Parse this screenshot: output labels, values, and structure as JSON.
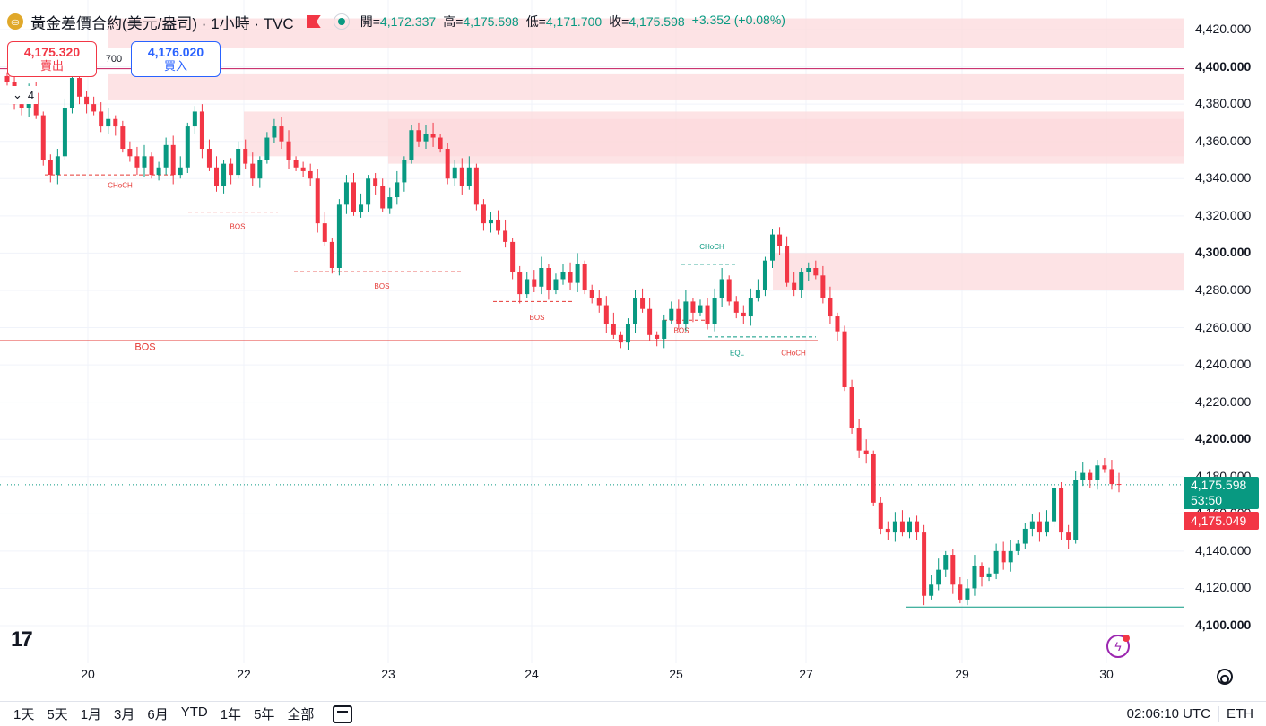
{
  "header": {
    "title": "黃金差價合約(美元/盎司) · 1小時 · TVC",
    "symbol_glyph": "⛀",
    "ohlc": [
      {
        "k": "開=",
        "v": "4,172.337"
      },
      {
        "k": "高=",
        "v": "4,175.598"
      },
      {
        "k": "低=",
        "v": "4,171.700"
      },
      {
        "k": "收=",
        "v": "4,175.598"
      },
      {
        "k": "",
        "v": "+3.352 (+0.08%)"
      }
    ]
  },
  "trade": {
    "sell_price": "4,175.320",
    "sell_label": "賣出",
    "spread": "700",
    "buy_price": "4,176.020",
    "buy_label": "買入"
  },
  "indicators_count": "4",
  "price_labels": {
    "last_price": "4,175.598",
    "countdown": "53:50",
    "bid_price": "4,175.049"
  },
  "bottom": {
    "periods": [
      "1天",
      "5天",
      "1月",
      "3月",
      "6月",
      "YTD",
      "1年",
      "5年",
      "全部"
    ],
    "time": "02:06:10 UTC",
    "session": "ETH"
  },
  "colors": {
    "up": "#089981",
    "down": "#f23645",
    "zone": "#fcd9dc"
  },
  "chart_data": {
    "type": "candlestick",
    "title": "黃金差價合約(美元/盎司) · 1小時 · TVC",
    "ylim": [
      4090,
      4430
    ],
    "y_ticks": [
      4100,
      4120,
      4140,
      4160,
      4180,
      4200,
      4220,
      4240,
      4260,
      4280,
      4300,
      4320,
      4340,
      4360,
      4380,
      4400,
      4420
    ],
    "y_tick_labels": [
      "4,100.000",
      "4,120.000",
      "4,140.000",
      "4,160.000",
      "4,180.000",
      "4,200.000",
      "4,220.000",
      "4,240.000",
      "4,260.000",
      "4,280.000",
      "4,300.000",
      "4,320.000",
      "4,340.000",
      "4,360.000",
      "4,380.000",
      "4,400.000",
      "4,420.000"
    ],
    "x_ticks": [
      "20",
      "22",
      "23",
      "24",
      "25",
      "27",
      "29",
      "30"
    ],
    "grid": true,
    "candles_close": [
      4392,
      4380,
      4378,
      4386,
      4374,
      4350,
      4342,
      4352,
      4378,
      4394,
      4384,
      4380,
      4376,
      4368,
      4372,
      4368,
      4356,
      4352,
      4346,
      4352,
      4342,
      4346,
      4358,
      4342,
      4346,
      4368,
      4376,
      4356,
      4346,
      4336,
      4348,
      4342,
      4356,
      4348,
      4340,
      4350,
      4362,
      4368,
      4360,
      4350,
      4346,
      4344,
      4340,
      4316,
      4306,
      4292,
      4326,
      4338,
      4322,
      4326,
      4340,
      4336,
      4324,
      4330,
      4338,
      4350,
      4366,
      4360,
      4364,
      4362,
      4356,
      4340,
      4346,
      4336,
      4346,
      4326,
      4316,
      4318,
      4312,
      4306,
      4290,
      4278,
      4286,
      4282,
      4292,
      4280,
      4286,
      4290,
      4284,
      4294,
      4280,
      4276,
      4272,
      4262,
      4256,
      4252,
      4262,
      4276,
      4270,
      4256,
      4254,
      4264,
      4270,
      4262,
      4274,
      4268,
      4272,
      4262,
      4276,
      4286,
      4274,
      4268,
      4266,
      4276,
      4280,
      4296,
      4310,
      4304,
      4284,
      4280,
      4290,
      4292,
      4288,
      4276,
      4266,
      4258,
      4228,
      4206,
      4194,
      4192,
      4166,
      4152,
      4150,
      4156,
      4150,
      4156,
      4150,
      4116,
      4122,
      4130,
      4138,
      4122,
      4114,
      4120,
      4132,
      4126,
      4128,
      4140,
      4134,
      4140,
      4144,
      4152,
      4156,
      4150,
      4156,
      4174,
      4150,
      4146,
      4178,
      4182,
      4178,
      4186,
      4184,
      4176,
      4175.6
    ],
    "zones": [
      {
        "top": 4426,
        "bottom": 4410,
        "type": "supply"
      },
      {
        "top": 4396,
        "bottom": 4382,
        "type": "supply"
      },
      {
        "top": 4376,
        "bottom": 4352,
        "type": "supply"
      },
      {
        "top": 4372,
        "bottom": 4348,
        "type": "supply"
      },
      {
        "top": 4300,
        "bottom": 4280,
        "type": "supply"
      }
    ],
    "levels": [
      {
        "price": 4399,
        "name": "horizontal"
      },
      {
        "price": 4253,
        "name": "BOS"
      },
      {
        "price": 4110,
        "name": "low"
      }
    ],
    "annotations": [
      "CHoCH",
      "BOS",
      "BOS",
      "BOS",
      "BOS",
      "BOS",
      "CHoCH",
      "EQL",
      "CHoCH",
      "BOS"
    ],
    "last_price": 4175.598
  }
}
